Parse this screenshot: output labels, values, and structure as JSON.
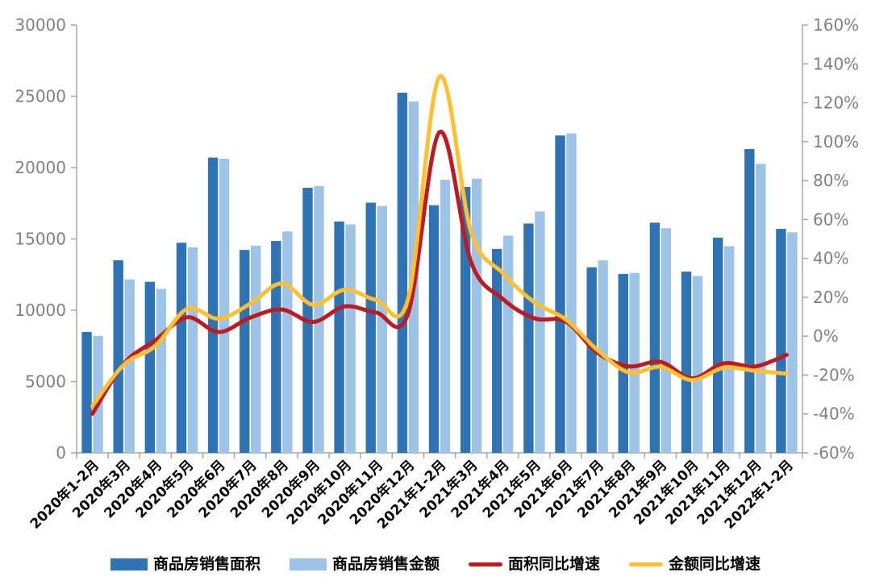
{
  "chart_data": {
    "type": "combo-bar-line",
    "categories": [
      "2020年1-2月",
      "2020年3月",
      "2020年4月",
      "2020年5月",
      "2020年6月",
      "2020年7月",
      "2020年8月",
      "2020年9月",
      "2020年10月",
      "2020年11月",
      "2020年12月",
      "2021年1-2月",
      "2021年3月",
      "2021年4月",
      "2021年5月",
      "2021年6月",
      "2021年7月",
      "2021年8月",
      "2021年9月",
      "2021年10月",
      "2021年11月",
      "2021年12月",
      "2022年1-2月"
    ],
    "series": [
      {
        "name": "商品房销售面积",
        "type": "bar",
        "axis": "left",
        "color": "#2E74B5",
        "values": [
          8475,
          13503,
          11995,
          14730,
          20701,
          14227,
          14855,
          18587,
          16221,
          17540,
          25252,
          17363,
          18644,
          14298,
          16078,
          22252,
          13013,
          12545,
          16139,
          12709,
          15090,
          21302,
          15703
        ]
      },
      {
        "name": "商品房销售金额",
        "type": "bar",
        "axis": "left",
        "color": "#9DC3E6",
        "values": [
          8203,
          12162,
          11498,
          14406,
          20626,
          14527,
          15521,
          18704,
          16018,
          17304,
          24644,
          19151,
          19227,
          15231,
          16925,
          22397,
          13499,
          12617,
          15748,
          12390,
          14482,
          20263,
          15459
        ]
      },
      {
        "name": "面积同比增速",
        "type": "line",
        "axis": "right",
        "color": "#BE1A20",
        "values": [
          -39.9,
          -14.1,
          -2.1,
          9.7,
          2.1,
          9.5,
          13.7,
          7.3,
          15.3,
          12.1,
          11.5,
          104.9,
          38.1,
          19.2,
          9.2,
          7.5,
          -8.5,
          -15.5,
          -13.2,
          -21.7,
          -14.0,
          -15.6,
          -9.6
        ]
      },
      {
        "name": "金额同比增速",
        "type": "line",
        "axis": "right",
        "color": "#FFC030",
        "values": [
          -35.9,
          -14.6,
          -5.0,
          14.0,
          9.0,
          16.6,
          27.1,
          16.1,
          23.9,
          18.6,
          18.9,
          133.4,
          53.5,
          32.5,
          17.5,
          8.6,
          -7.1,
          -18.7,
          -15.8,
          -22.6,
          -16.3,
          -17.8,
          -19.3
        ]
      }
    ],
    "left_axis": {
      "min": 0,
      "max": 30000,
      "step": 5000,
      "tick_labels": [
        "0",
        "5000",
        "10000",
        "15000",
        "20000",
        "25000",
        "30000"
      ]
    },
    "right_axis": {
      "min": -60,
      "max": 160,
      "step": 20,
      "tick_labels": [
        "-60%",
        "-40%",
        "-20%",
        "0%",
        "20%",
        "40%",
        "60%",
        "80%",
        "100%",
        "120%",
        "140%",
        "160%"
      ]
    },
    "grid": false,
    "legend_position": "bottom",
    "colors": {
      "axis_line": "#A6A6A6",
      "axis_label": "#808080",
      "x_label": "#000000",
      "background": "#FFFFFF"
    }
  }
}
